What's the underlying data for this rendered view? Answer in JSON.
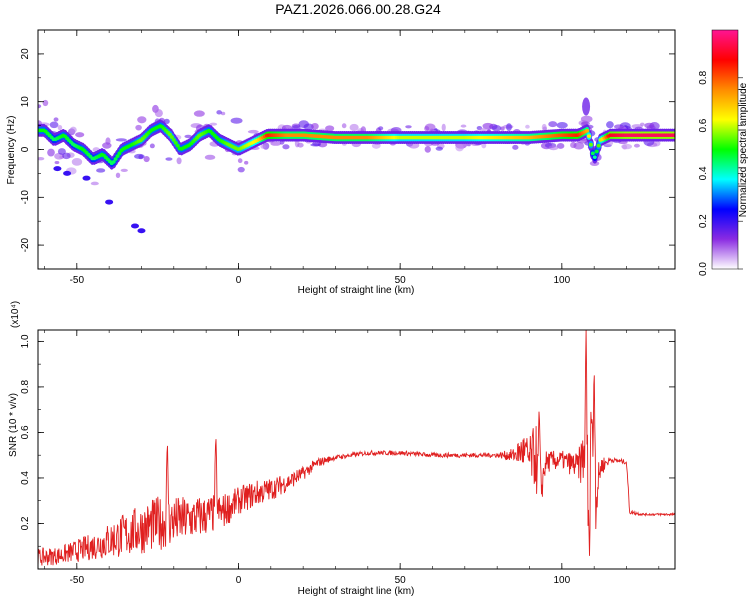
{
  "title": "PAZ1.2026.066.00.28.G24",
  "chart_data": [
    {
      "type": "heatmap",
      "title": "PAZ1.2026.066.00.28.G24",
      "xlabel": "Height of straight line (km)",
      "ylabel": "Frequency (Hz)",
      "xlim": [
        -62,
        135
      ],
      "ylim": [
        -25,
        25
      ],
      "xticks": [
        -50,
        0,
        50,
        100
      ],
      "yticks": [
        -20,
        -10,
        0,
        10,
        20
      ],
      "colorbar": {
        "label": "Normalized spectral amplitude",
        "range": [
          0,
          1
        ],
        "ticks": [
          "0.0",
          "0.2",
          "0.4",
          "0.6",
          "0.8"
        ],
        "colors": [
          "#ffffff",
          "#8a2be2",
          "#0000ff",
          "#00ffff",
          "#00ff00",
          "#ffff00",
          "#ff8c00",
          "#ff0000",
          "#ff1493"
        ]
      },
      "ridge": {
        "x": [
          -60,
          -57,
          -54,
          -51,
          -48,
          -45,
          -42,
          -39,
          -36,
          -33,
          -30,
          -27,
          -24,
          -21,
          -18,
          -15,
          -12,
          -9,
          -6,
          -3,
          0,
          3,
          6,
          9,
          12,
          15,
          20,
          30,
          40,
          50,
          60,
          70,
          80,
          90,
          100,
          105,
          108,
          110,
          112,
          115,
          120,
          125,
          130,
          135
        ],
        "y": [
          4,
          2,
          3,
          1,
          0,
          -2,
          -1,
          -3,
          0,
          1,
          2,
          4,
          5,
          3,
          0,
          1,
          3,
          4,
          2,
          1,
          0,
          1,
          2,
          3,
          3,
          3,
          3,
          2.5,
          2.5,
          2.5,
          2.5,
          2.5,
          2.5,
          2.5,
          3,
          3,
          4,
          -2,
          2,
          3,
          3,
          3,
          3,
          3
        ],
        "intensity": [
          0.5,
          0.45,
          0.5,
          0.45,
          0.5,
          0.45,
          0.5,
          0.45,
          0.5,
          0.5,
          0.55,
          0.5,
          0.5,
          0.55,
          0.5,
          0.5,
          0.55,
          0.5,
          0.5,
          0.55,
          0.55,
          0.6,
          0.65,
          0.85,
          0.8,
          0.75,
          0.75,
          0.75,
          0.75,
          0.6,
          0.6,
          0.6,
          0.65,
          0.7,
          0.8,
          0.85,
          0.7,
          0.4,
          0.6,
          0.9,
          0.95,
          0.95,
          0.95,
          0.95
        ]
      }
    },
    {
      "type": "line",
      "xlabel": "Height of straight line (km)",
      "ylabel": "SNR (10 * v/v)",
      "yscale_label": "(x10⁴)",
      "xlim": [
        -62,
        135
      ],
      "ylim": [
        0,
        1.05
      ],
      "xticks": [
        -50,
        0,
        50,
        100
      ],
      "yticks": [
        0.2,
        0.4,
        0.6,
        0.8,
        1.0
      ],
      "color": "#e02020",
      "envelope": {
        "x": [
          -62,
          -55,
          -45,
          -35,
          -25,
          -15,
          -5,
          0,
          5,
          10,
          15,
          20,
          25,
          30,
          35,
          40,
          50,
          60,
          70,
          80,
          85,
          88,
          90,
          92,
          93,
          95,
          100,
          105,
          107,
          108,
          109,
          110,
          112,
          115,
          120,
          121,
          125,
          130,
          135
        ],
        "y": [
          0.05,
          0.06,
          0.1,
          0.15,
          0.2,
          0.22,
          0.25,
          0.3,
          0.33,
          0.35,
          0.38,
          0.42,
          0.47,
          0.49,
          0.5,
          0.51,
          0.51,
          0.5,
          0.5,
          0.5,
          0.5,
          0.52,
          0.48,
          0.5,
          0.3,
          0.47,
          0.48,
          0.45,
          0.5,
          0.3,
          0.75,
          0.25,
          0.45,
          0.48,
          0.47,
          0.25,
          0.24,
          0.24,
          0.24
        ],
        "noise": [
          0.04,
          0.04,
          0.06,
          0.1,
          0.12,
          0.1,
          0.08,
          0.06,
          0.06,
          0.05,
          0.04,
          0.03,
          0.02,
          0.01,
          0.01,
          0.01,
          0.01,
          0.01,
          0.01,
          0.01,
          0.03,
          0.08,
          0.1,
          0.15,
          0.1,
          0.05,
          0.04,
          0.06,
          0.15,
          0.3,
          0.2,
          0.15,
          0.05,
          0.01,
          0.01,
          0.01,
          0.005,
          0.005,
          0.005
        ]
      },
      "spikes": [
        {
          "x": -22,
          "y": 0.57
        },
        {
          "x": -7,
          "y": 0.6
        },
        {
          "x": 93,
          "y": 0.73
        },
        {
          "x": 107.5,
          "y": 1.05
        },
        {
          "x": 108.5,
          "y": 0.03
        },
        {
          "x": 110,
          "y": 0.93
        }
      ]
    }
  ]
}
